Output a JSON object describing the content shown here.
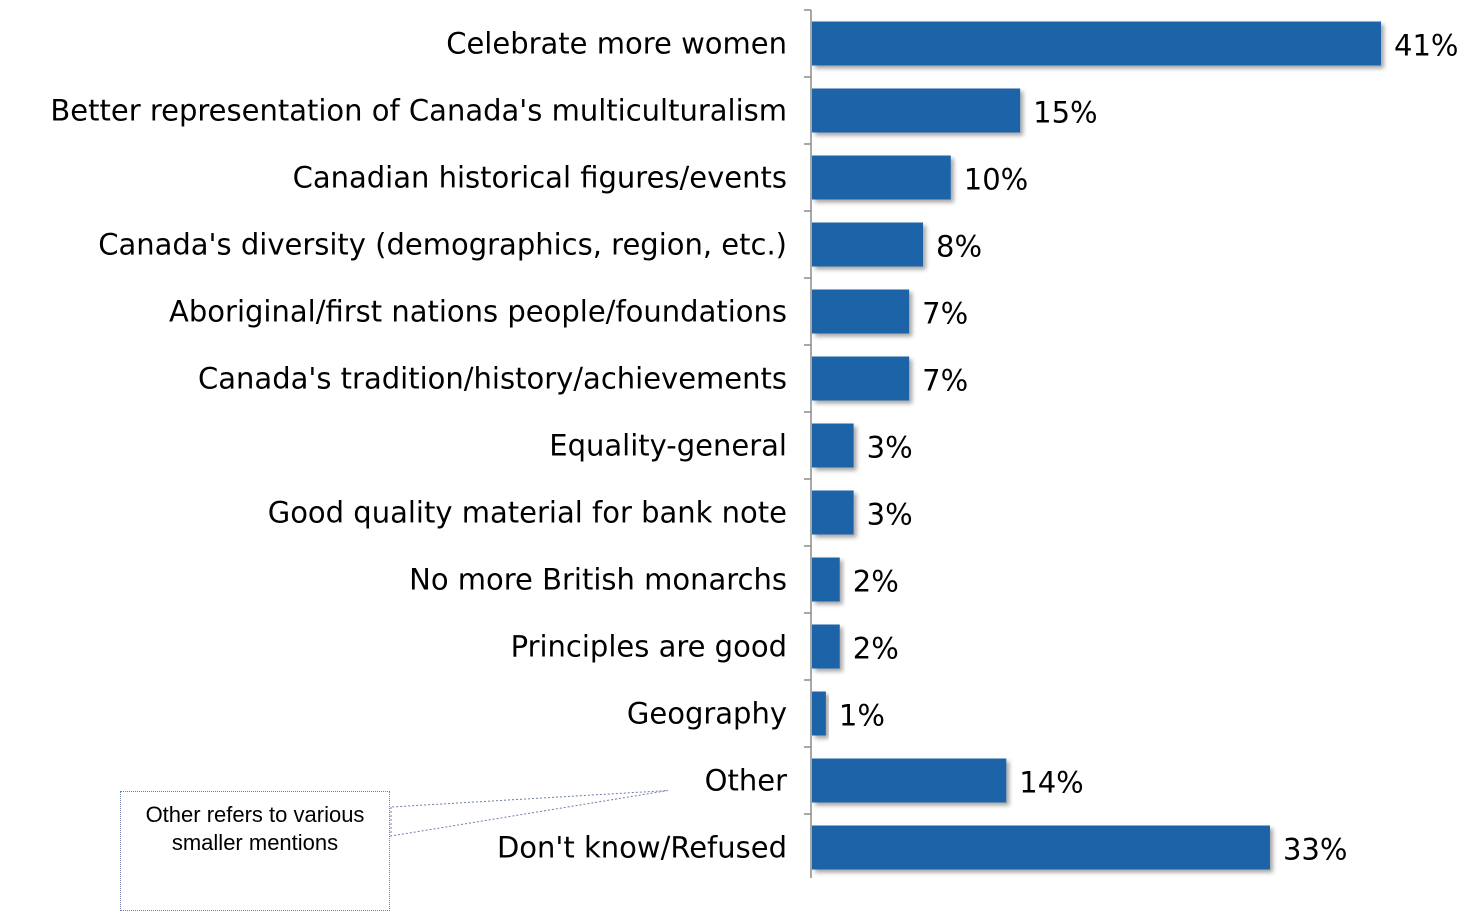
{
  "chart_data": {
    "type": "bar",
    "orientation": "horizontal",
    "categories": [
      "Celebrate more women",
      "Better representation of Canada's multiculturalism",
      "Canadian historical figures/events",
      "Canada's diversity (demographics, region, etc.)",
      "Aboriginal/first nations people/foundations",
      "Canada's tradition/history/achievements",
      "Equality-general",
      "Good quality material for bank note",
      "No more British monarchs",
      "Principles are good",
      "Geography",
      "Other",
      "Don't know/Refused"
    ],
    "values": [
      41,
      15,
      10,
      8,
      7,
      7,
      3,
      3,
      2,
      2,
      1,
      14,
      33
    ],
    "value_labels": [
      "41%",
      "15%",
      "10%",
      "8%",
      "7%",
      "7%",
      "3%",
      "3%",
      "2%",
      "2%",
      "1%",
      "14%",
      "33%"
    ],
    "unit": "%",
    "bar_color": "#1f64a8",
    "xlim": [
      0,
      41
    ],
    "grid": false,
    "annotation": "Other refers to various smaller mentions"
  }
}
